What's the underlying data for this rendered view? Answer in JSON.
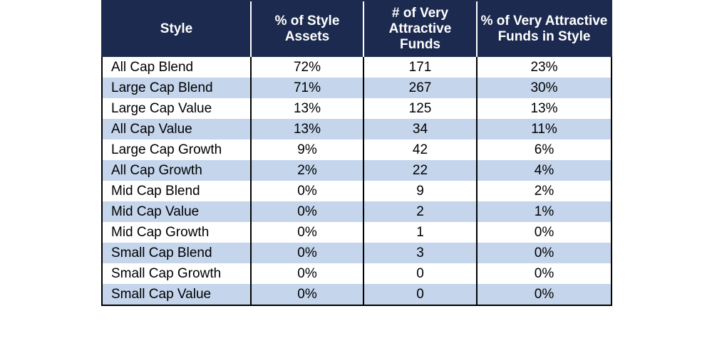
{
  "table": {
    "headers": [
      "Style",
      "% of Style Assets",
      "# of Very Attractive Funds",
      "% of Very Attractive Funds in Style"
    ],
    "rows": [
      [
        "All Cap Blend",
        "72%",
        "171",
        "23%"
      ],
      [
        "Large Cap Blend",
        "71%",
        "267",
        "30%"
      ],
      [
        "Large Cap Value",
        "13%",
        "125",
        "13%"
      ],
      [
        "All Cap Value",
        "13%",
        "34",
        "11%"
      ],
      [
        "Large Cap Growth",
        "9%",
        "42",
        "6%"
      ],
      [
        "All Cap Growth",
        "2%",
        "22",
        "4%"
      ],
      [
        "Mid Cap Blend",
        "0%",
        "9",
        "2%"
      ],
      [
        "Mid Cap Value",
        "0%",
        "2",
        "1%"
      ],
      [
        "Mid Cap Growth",
        "0%",
        "1",
        "0%"
      ],
      [
        "Small Cap Blend",
        "0%",
        "3",
        "0%"
      ],
      [
        "Small Cap Growth",
        "0%",
        "0",
        "0%"
      ],
      [
        "Small Cap Value",
        "0%",
        "0",
        "0%"
      ]
    ]
  },
  "colors": {
    "header_bg": "#1c2a4f",
    "header_text": "#ffffff",
    "stripe": "#c4d5ec",
    "row_bg": "#ffffff"
  }
}
